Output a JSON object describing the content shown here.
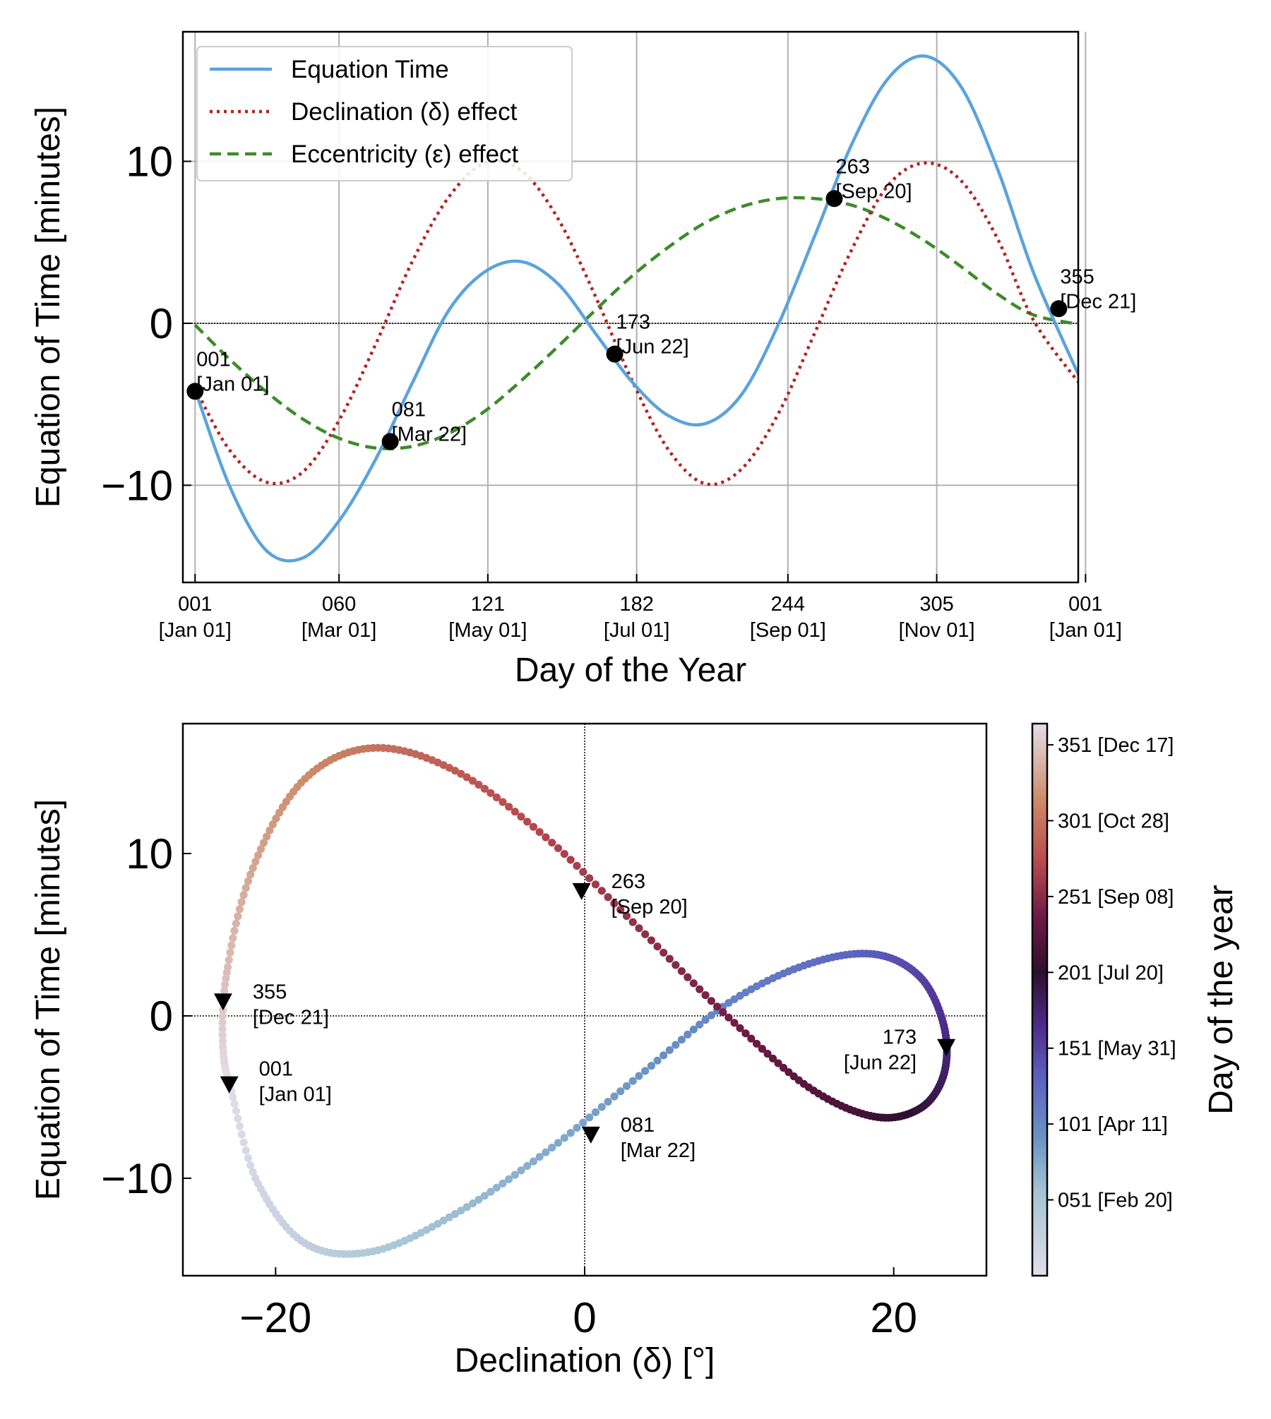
{
  "chart_data": [
    {
      "type": "line",
      "xlabel": "Day of the Year",
      "ylabel": "Equation of Time [minutes]",
      "xlim": [
        -4,
        363
      ],
      "ylim": [
        -16,
        18
      ],
      "grid": true,
      "legend_position": "top-left",
      "x_ticks": [
        {
          "value": 1,
          "line1": "001",
          "line2": "[Jan 01]"
        },
        {
          "value": 60,
          "line1": "060",
          "line2": "[Mar 01]"
        },
        {
          "value": 121,
          "line1": "121",
          "line2": "[May 01]"
        },
        {
          "value": 182,
          "line1": "182",
          "line2": "[Jul 01]"
        },
        {
          "value": 244,
          "line1": "244",
          "line2": "[Sep 01]"
        },
        {
          "value": 305,
          "line1": "305",
          "line2": "[Nov 01]"
        },
        {
          "value": 366,
          "line1": "001",
          "line2": "[Jan 01]"
        }
      ],
      "y_ticks": [
        {
          "value": -10,
          "label": "−10"
        },
        {
          "value": 0,
          "label": "0"
        },
        {
          "value": 10,
          "label": "10"
        }
      ],
      "series": [
        {
          "name": "Equation Time",
          "color": "#5ba3db",
          "style": "solid",
          "x": [
            1,
            15,
            30,
            45,
            60,
            75,
            90,
            105,
            120,
            135,
            150,
            165,
            180,
            195,
            210,
            225,
            240,
            255,
            270,
            285,
            300,
            315,
            330,
            345,
            365
          ],
          "y": [
            -4.1,
            -10.0,
            -14.0,
            -14.5,
            -12.2,
            -8.4,
            -3.7,
            0.8,
            3.2,
            3.8,
            2.4,
            -0.6,
            -3.6,
            -5.7,
            -6.2,
            -4.4,
            -0.1,
            5.4,
            11.0,
            15.1,
            16.5,
            14.6,
            9.5,
            3.0,
            -3.8
          ]
        },
        {
          "name": "Declination (δ) effect",
          "color": "#b22222",
          "style": "dotted",
          "x": [
            1,
            15,
            30,
            45,
            60,
            75,
            90,
            105,
            120,
            135,
            150,
            165,
            180,
            195,
            210,
            225,
            240,
            255,
            270,
            285,
            300,
            315,
            330,
            345,
            365
          ],
          "y": [
            -4.0,
            -7.8,
            -9.8,
            -9.2,
            -6.0,
            -1.3,
            3.8,
            7.8,
            9.9,
            9.4,
            6.4,
            1.7,
            -3.5,
            -7.8,
            -9.9,
            -9.0,
            -5.6,
            -0.6,
            4.5,
            8.5,
            9.9,
            8.8,
            5.2,
            0.1,
            -4.0
          ]
        },
        {
          "name": "Eccentricity (ε) effect",
          "color": "#3c8c2a",
          "style": "dashed",
          "x": [
            1,
            15,
            30,
            45,
            60,
            75,
            90,
            105,
            120,
            135,
            150,
            165,
            180,
            195,
            210,
            225,
            240,
            255,
            270,
            285,
            300,
            315,
            330,
            345,
            365
          ],
          "y": [
            -0.1,
            -2.2,
            -4.2,
            -5.9,
            -7.1,
            -7.7,
            -7.6,
            -6.8,
            -5.4,
            -3.5,
            -1.4,
            0.8,
            2.9,
            4.7,
            6.2,
            7.2,
            7.7,
            7.7,
            7.3,
            6.4,
            5.1,
            3.5,
            1.8,
            0.5,
            -0.1
          ]
        }
      ],
      "markers": [
        {
          "x": 1,
          "y": -4.2,
          "line1": "001",
          "line2": "[Jan 01]"
        },
        {
          "x": 81,
          "y": -7.3,
          "line1": "081",
          "line2": "[Mar 22]"
        },
        {
          "x": 173,
          "y": -1.9,
          "line1": "173",
          "line2": "[Jun 22]"
        },
        {
          "x": 263,
          "y": 7.7,
          "line1": "263",
          "line2": "[Sep 20]"
        },
        {
          "x": 355,
          "y": 0.9,
          "line1": "355",
          "line2": "[Dec 21]"
        }
      ]
    },
    {
      "type": "scatter",
      "xlabel": "Declination (δ) [°]",
      "ylabel": "Equation of Time [minutes]",
      "colorbar_label": "Day of the year",
      "xlim": [
        -26,
        26
      ],
      "ylim": [
        -16,
        18
      ],
      "x_ticks": [
        {
          "value": -20,
          "label": "−20"
        },
        {
          "value": 0,
          "label": "0"
        },
        {
          "value": 20,
          "label": "20"
        }
      ],
      "y_ticks": [
        {
          "value": -10,
          "label": "−10"
        },
        {
          "value": 0,
          "label": "0"
        },
        {
          "value": 10,
          "label": "10"
        }
      ],
      "colorbar_range": [
        1,
        365
      ],
      "colorbar_ticks": [
        {
          "value": 51,
          "label": "051 [Feb 20]"
        },
        {
          "value": 101,
          "label": "101 [Apr 11]"
        },
        {
          "value": 151,
          "label": "151 [May 31]"
        },
        {
          "value": 201,
          "label": "201 [Jul 20]"
        },
        {
          "value": 251,
          "label": "251 [Sep 08]"
        },
        {
          "value": 301,
          "label": "301 [Oct 28]"
        },
        {
          "value": 351,
          "label": "351 [Dec 17]"
        }
      ],
      "colormap": [
        {
          "t": 0.0,
          "color": "#e4dde9"
        },
        {
          "t": 0.15,
          "color": "#a4c4d3"
        },
        {
          "t": 0.25,
          "color": "#6a93c4"
        },
        {
          "t": 0.36,
          "color": "#5c60c0"
        },
        {
          "t": 0.45,
          "color": "#4d2c8c"
        },
        {
          "t": 0.55,
          "color": "#2d0f2e"
        },
        {
          "t": 0.65,
          "color": "#6e1a45"
        },
        {
          "t": 0.75,
          "color": "#b84a4e"
        },
        {
          "t": 0.86,
          "color": "#cc8a68"
        },
        {
          "t": 1.0,
          "color": "#e4dde9"
        }
      ],
      "markers": [
        {
          "x": -23.0,
          "y": -4.2,
          "line1": "001",
          "line2": "[Jan 01]"
        },
        {
          "x": 0.4,
          "y": -7.3,
          "line1": "081",
          "line2": "[Mar 22]"
        },
        {
          "x": 23.4,
          "y": -1.9,
          "line1": "173",
          "line2": "[Jun 22]"
        },
        {
          "x": -0.2,
          "y": 7.7,
          "line1": "263",
          "line2": "[Sep 20]"
        },
        {
          "x": -23.4,
          "y": 0.9,
          "line1": "355",
          "line2": "[Dec 21]"
        }
      ]
    }
  ]
}
